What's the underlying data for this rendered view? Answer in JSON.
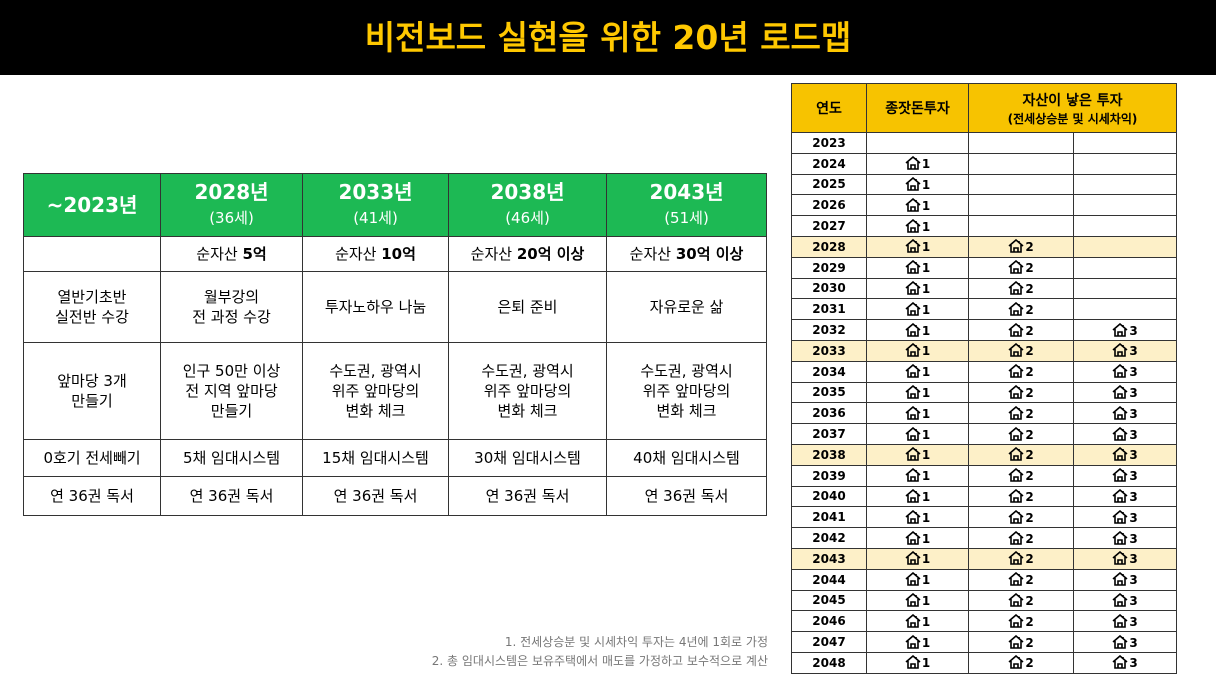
{
  "title": "비전보드 실현을 위한 20년 로드맵",
  "plan": {
    "header": [
      "~2023년",
      {
        "year": "2028년",
        "age": "(36세)"
      },
      {
        "year": "2033년",
        "age": "(41세)"
      },
      {
        "year": "2038년",
        "age": "(46세)"
      },
      {
        "year": "2043년",
        "age": "(51세)"
      }
    ],
    "rows": [
      [
        null,
        {
          "label": "순자산",
          "amount": "5억"
        },
        {
          "label": "순자산",
          "amount": "10억"
        },
        {
          "label": "순자산",
          "amount": "20억 이상"
        },
        {
          "label": "순자산",
          "amount": "30억 이상"
        }
      ],
      [
        "열반기초반\n실전반 수강",
        "월부강의\n전 과정 수강",
        "투자노하우 나눔",
        "은퇴 준비",
        "자유로운 삶"
      ],
      [
        "앞마당 3개\n만들기",
        "인구 50만 이상\n전 지역 앞마당\n만들기",
        "수도권, 광역시\n위주 앞마당의\n변화 체크",
        "수도권, 광역시\n위주 앞마당의\n변화 체크",
        "수도권, 광역시\n위주 앞마당의\n변화 체크"
      ],
      [
        "0호기 전세빼기",
        "5채 임대시스템",
        "15채 임대시스템",
        "30채 임대시스템",
        "40채 임대시스템"
      ],
      [
        "연 36권 독서",
        "연 36권 독서",
        "연 36권 독서",
        "연 36권 독서",
        "연 36권 독서"
      ]
    ]
  },
  "notes": [
    "1. 전세상승분 및 시세차익 투자는 4년에 1회로 가정",
    "2. 총 임대시스템은 보유주택에서 매도를 가정하고 보수적으로 계산"
  ],
  "schedule": {
    "header": {
      "year": "연도",
      "seed": "종잣돈투자",
      "asset": "자산이 낳은 투자",
      "asset_sub": "(전세상승분 및 시세차익)"
    },
    "rows": [
      [
        "2023"
      ],
      [
        "2024",
        "1"
      ],
      [
        "2025",
        "1"
      ],
      [
        "2026",
        "1"
      ],
      [
        "2027",
        "1"
      ],
      [
        "2028",
        "1",
        "2"
      ],
      [
        "2029",
        "1",
        "2"
      ],
      [
        "2030",
        "1",
        "2"
      ],
      [
        "2031",
        "1",
        "2"
      ],
      [
        "2032",
        "1",
        "2",
        "3"
      ],
      [
        "2033",
        "1",
        "2",
        "3"
      ],
      [
        "2034",
        "1",
        "2",
        "3"
      ],
      [
        "2035",
        "1",
        "2",
        "3"
      ],
      [
        "2036",
        "1",
        "2",
        "3"
      ],
      [
        "2037",
        "1",
        "2",
        "3"
      ],
      [
        "2038",
        "1",
        "2",
        "3"
      ],
      [
        "2039",
        "1",
        "2",
        "3"
      ],
      [
        "2040",
        "1",
        "2",
        "3"
      ],
      [
        "2041",
        "1",
        "2",
        "3"
      ],
      [
        "2042",
        "1",
        "2",
        "3"
      ],
      [
        "2043",
        "1",
        "2",
        "3"
      ],
      [
        "2044",
        "1",
        "2",
        "3"
      ],
      [
        "2045",
        "1",
        "2",
        "3"
      ],
      [
        "2046",
        "1",
        "2",
        "3"
      ],
      [
        "2047",
        "1",
        "2",
        "3"
      ],
      [
        "2048",
        "1",
        "2",
        "3"
      ]
    ]
  }
}
